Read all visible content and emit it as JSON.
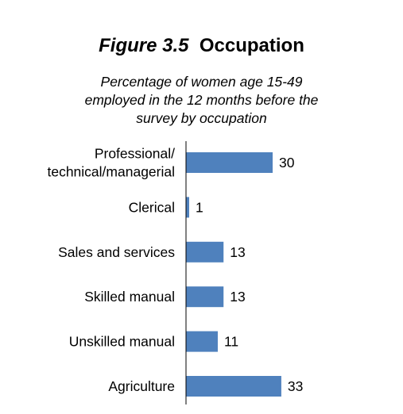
{
  "figure": {
    "number": "Figure 3.5",
    "title": "Occupation",
    "subtitle_lines": [
      "Percentage of women age 15-49",
      "employed in the 12 months before the",
      "survey by occupation"
    ]
  },
  "chart_data": {
    "type": "bar",
    "orientation": "horizontal",
    "title": "Figure 3.5  Occupation",
    "subtitle": "Percentage of women age 15-49 employed in the 12 months before the survey by occupation",
    "categories": [
      [
        "Professional/",
        "technical/managerial"
      ],
      [
        "Clerical"
      ],
      [
        "Sales and services"
      ],
      [
        "Skilled manual"
      ],
      [
        "Unskilled manual"
      ],
      [
        "Agriculture"
      ]
    ],
    "values": [
      30,
      1,
      13,
      13,
      11,
      33
    ],
    "xlim": [
      0,
      33
    ],
    "bar_color": "#4f81bd",
    "data_labels": true,
    "grid": false
  }
}
